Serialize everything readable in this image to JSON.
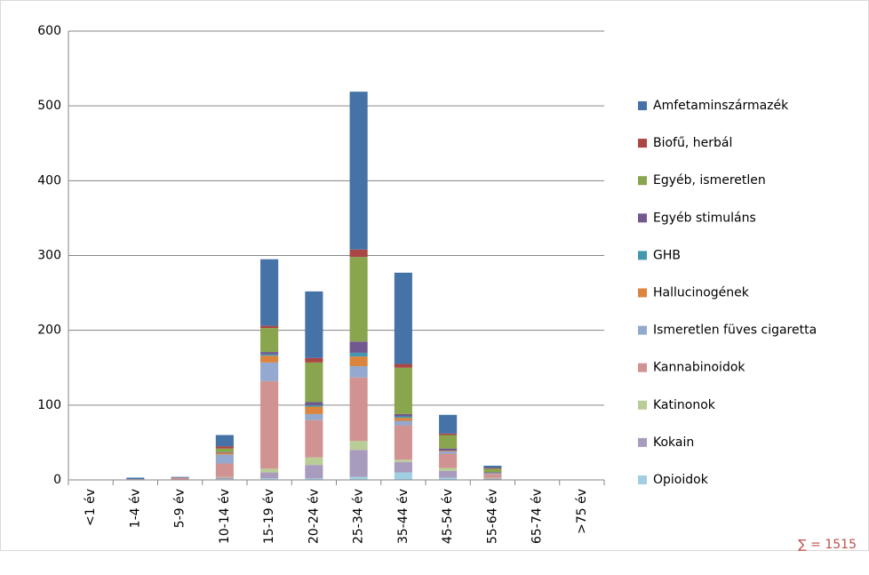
{
  "chart_data": {
    "type": "stacked_bar",
    "categories": [
      "<1 év",
      "1-4 év",
      "5-9 év",
      "10-14 év",
      "15-19 év",
      "20-24 év",
      "25-34 év",
      "35-44 év",
      "45-54 év",
      "55-64 év",
      "65-74 év",
      ">75 év"
    ],
    "series": [
      {
        "name": "Amfetaminszármazék",
        "color": "#4572a7",
        "values": [
          0,
          2,
          1,
          15,
          89,
          89,
          211,
          122,
          25,
          3,
          0,
          0
        ]
      },
      {
        "name": "Biofű, herbál",
        "color": "#aa4643",
        "values": [
          0,
          0,
          0,
          3,
          3,
          6,
          10,
          5,
          2,
          1,
          0,
          0
        ]
      },
      {
        "name": "Egyéb, ismeretlen",
        "color": "#89a54e",
        "values": [
          0,
          0,
          0,
          5,
          32,
          53,
          113,
          62,
          18,
          5,
          0,
          0
        ]
      },
      {
        "name": "Egyéb stimuláns",
        "color": "#71588f",
        "values": [
          0,
          0,
          0,
          1,
          3,
          4,
          15,
          3,
          3,
          1,
          0,
          0
        ]
      },
      {
        "name": "GHB",
        "color": "#4198af",
        "values": [
          0,
          0,
          0,
          0,
          2,
          2,
          5,
          2,
          0,
          0,
          0,
          0
        ]
      },
      {
        "name": "Hallucinogének",
        "color": "#db843d",
        "values": [
          0,
          0,
          0,
          2,
          9,
          10,
          13,
          4,
          1,
          0,
          0,
          0
        ]
      },
      {
        "name": "Ismeretlen füves cigaretta",
        "color": "#93a9cf",
        "values": [
          0,
          0,
          0,
          12,
          25,
          8,
          15,
          6,
          3,
          1,
          0,
          0
        ]
      },
      {
        "name": "Kannabinoidok",
        "color": "#d19392",
        "values": [
          0,
          1,
          3,
          18,
          117,
          50,
          85,
          46,
          19,
          5,
          0,
          0
        ]
      },
      {
        "name": "Katinonok",
        "color": "#b9cd96",
        "values": [
          0,
          0,
          0,
          1,
          5,
          10,
          12,
          3,
          4,
          1,
          0,
          0
        ]
      },
      {
        "name": "Kokain",
        "color": "#a99bbd",
        "values": [
          0,
          0,
          0,
          2,
          8,
          18,
          36,
          14,
          9,
          2,
          0,
          0
        ]
      },
      {
        "name": "Opioidok",
        "color": "#9fcfe0",
        "values": [
          0,
          0,
          0,
          1,
          2,
          2,
          4,
          10,
          3,
          0,
          0,
          0
        ]
      }
    ],
    "ylim": [
      0,
      600
    ],
    "yticks": [
      0,
      100,
      200,
      300,
      400,
      500,
      600
    ],
    "grid": true,
    "legend": "right",
    "sum_label": "∑ = 1515"
  }
}
